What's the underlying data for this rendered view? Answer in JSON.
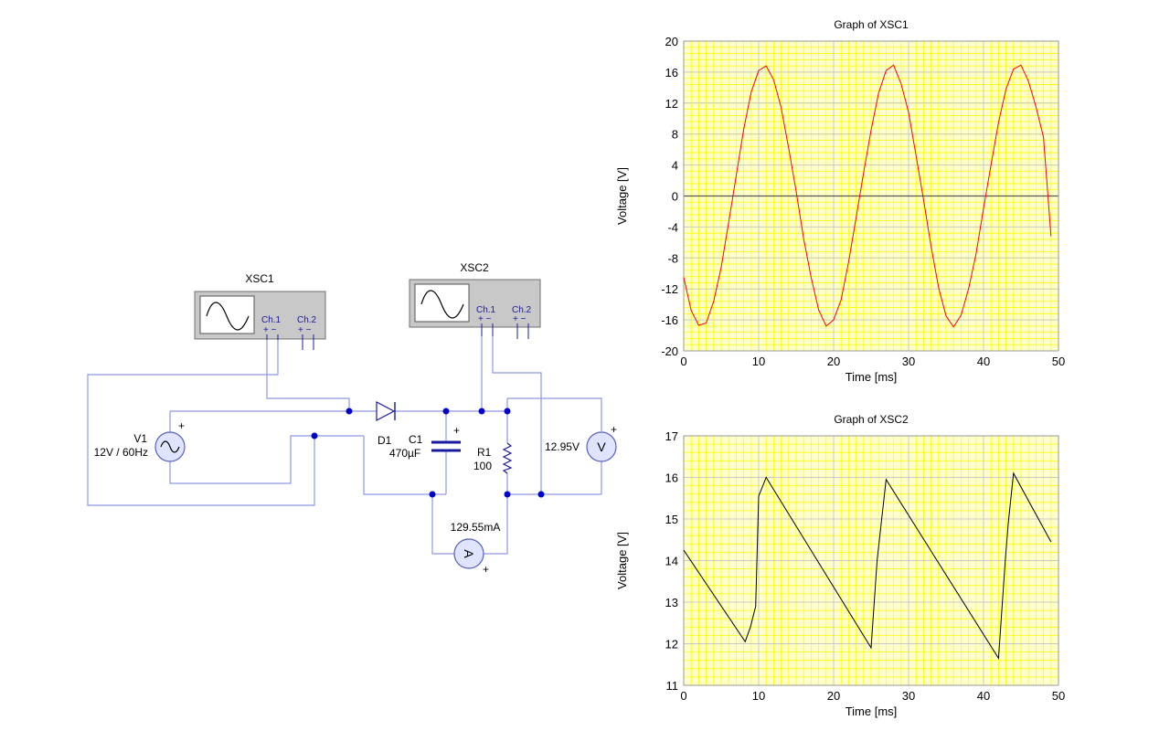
{
  "circuit": {
    "xsc1": {
      "title": "XSC1",
      "ch1": "Ch.1",
      "ch2": "Ch.2",
      "pm1": "+  −",
      "pm2": "+  −"
    },
    "xsc2": {
      "title": "XSC2",
      "ch1": "Ch.1",
      "ch2": "Ch.2",
      "pm1": "+  −",
      "pm2": "+  −"
    },
    "v1": {
      "name": "V1",
      "value": "12V / 60Hz",
      "plus": "+"
    },
    "d1": {
      "name": "D1"
    },
    "c1": {
      "name": "C1",
      "value": "470µF",
      "plus": "+"
    },
    "r1": {
      "name": "R1",
      "value": "100"
    },
    "voltmeter": {
      "reading": "12.95V",
      "symbol": "V",
      "plus": "+"
    },
    "ammeter": {
      "reading": "129.55mA",
      "symbol": "A",
      "plus": "+"
    },
    "colors": {
      "wire": "#8e96e6",
      "node": "#0000cc",
      "instrument": "#c8c8c8",
      "meter_fill": "#e0e4ff"
    }
  },
  "chart_data": [
    {
      "type": "line",
      "title": "Graph of XSC1",
      "xlabel": "Time [ms]",
      "ylabel": "Voltage [V]",
      "xlim": [
        0,
        50
      ],
      "ylim": [
        -20,
        20
      ],
      "xticks": [
        0,
        10,
        20,
        30,
        40,
        50
      ],
      "yticks": [
        20,
        16,
        12,
        8,
        4,
        0,
        -4,
        -8,
        -12,
        -16,
        -20
      ],
      "grid": true,
      "background": "#ffffcc",
      "grid_color": "#ffff00",
      "major_grid_color": "#c8c8c8",
      "series": [
        {
          "color": "#ff0000",
          "x": [
            0,
            1,
            2,
            3,
            4,
            5,
            6,
            7,
            8,
            9,
            10,
            11,
            12,
            13,
            14,
            15,
            16,
            17,
            18,
            19,
            20,
            21,
            22,
            23,
            24,
            25,
            26,
            27,
            28,
            29,
            30,
            31,
            32,
            33,
            34,
            35,
            36,
            37,
            38,
            39,
            40,
            41,
            42,
            43,
            44,
            45,
            46,
            47,
            48,
            49
          ],
          "y": [
            -10.5,
            -14.8,
            -16.7,
            -16.4,
            -13.6,
            -9.2,
            -3.4,
            2.6,
            8.6,
            13.4,
            16.2,
            16.8,
            15.0,
            11.4,
            6.2,
            0.6,
            -5.5,
            -10.5,
            -14.7,
            -16.8,
            -16.0,
            -13.4,
            -8.5,
            -2.8,
            3.0,
            8.5,
            13.3,
            16.2,
            16.9,
            14.5,
            10.8,
            5.2,
            -0.5,
            -6.5,
            -11.8,
            -15.5,
            -16.9,
            -15.4,
            -12.0,
            -7.5,
            -1.6,
            4.0,
            9.5,
            13.8,
            16.4,
            16.9,
            14.8,
            11.5,
            7.6,
            -5.2
          ]
        }
      ]
    },
    {
      "type": "line",
      "title": "Graph of XSC2",
      "xlabel": "Time [ms]",
      "ylabel": "Voltage [V]",
      "xlim": [
        0,
        50
      ],
      "ylim": [
        11,
        17
      ],
      "xticks": [
        0,
        10,
        20,
        30,
        40,
        50
      ],
      "yticks": [
        17,
        16,
        15,
        14,
        13,
        12,
        11
      ],
      "grid": true,
      "background": "#ffffcc",
      "grid_color": "#ffff00",
      "major_grid_color": "#c8c8c8",
      "series": [
        {
          "color": "#000000",
          "x": [
            0,
            8.2,
            8.9,
            9.6,
            10,
            11,
            25,
            25.8,
            27,
            42,
            42.9,
            43.3,
            44,
            49
          ],
          "y": [
            14.25,
            12.05,
            12.4,
            12.9,
            15.55,
            16.0,
            11.9,
            14.0,
            15.95,
            11.65,
            14.0,
            14.9,
            16.1,
            14.45
          ]
        }
      ]
    }
  ]
}
